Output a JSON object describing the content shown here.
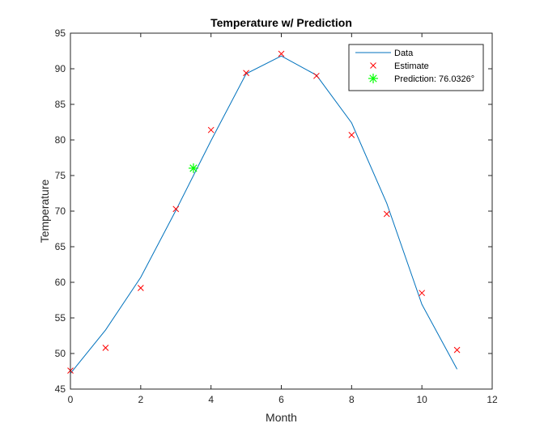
{
  "chart_data": {
    "type": "line",
    "title": "Temperature w/ Prediction",
    "xlabel": "Month",
    "ylabel": "Temperature",
    "xlim": [
      0,
      12
    ],
    "ylim": [
      45,
      95
    ],
    "x_ticks": [
      0,
      2,
      4,
      6,
      8,
      10,
      12
    ],
    "y_ticks": [
      45,
      50,
      55,
      60,
      65,
      70,
      75,
      80,
      85,
      90,
      95
    ],
    "grid": false,
    "legend_position": "top-right",
    "series": [
      {
        "name": "Data",
        "kind": "line",
        "color": "#0072BD",
        "x": [
          0,
          1,
          2,
          3,
          4,
          5,
          6,
          7,
          8,
          9,
          10,
          11
        ],
        "y": [
          47.2,
          53.3,
          60.7,
          70.1,
          79.9,
          89.3,
          91.8,
          89.1,
          82.4,
          71.1,
          56.9,
          47.8
        ]
      },
      {
        "name": "Estimate",
        "kind": "marker-x",
        "color": "#FF0000",
        "x": [
          0,
          1,
          2,
          3,
          4,
          5,
          6,
          7,
          8,
          9,
          10,
          11
        ],
        "y": [
          47.6,
          50.8,
          59.2,
          70.3,
          81.4,
          89.4,
          92.1,
          89.0,
          80.7,
          69.6,
          58.5,
          50.5
        ]
      },
      {
        "name": "Prediction: 76.0326°",
        "kind": "marker-star",
        "color": "#00FF00",
        "x": [
          3.5
        ],
        "y": [
          76.0326
        ]
      }
    ]
  }
}
